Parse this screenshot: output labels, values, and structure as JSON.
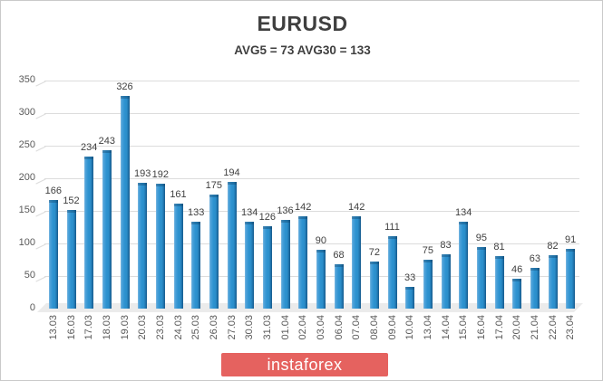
{
  "header": {
    "title": "EURUSD",
    "subtitle": "AVG5 = 73 AVG30 = 133"
  },
  "watermark": {
    "label": "instaforex",
    "background": "#e5625f",
    "text_color": "#ffffff"
  },
  "chart_data": {
    "type": "bar",
    "title": "EURUSD",
    "subtitle": "AVG5 = 73 AVG30 = 133",
    "categories": [
      "13.03",
      "16.03",
      "17.03",
      "18.03",
      "19.03",
      "20.03",
      "23.03",
      "24.03",
      "25.03",
      "26.03",
      "27.03",
      "30.03",
      "31.03",
      "01.04",
      "02.04",
      "03.04",
      "06.04",
      "07.04",
      "08.04",
      "09.04",
      "10.04",
      "13.04",
      "14.04",
      "15.04",
      "16.04",
      "17.04",
      "20.04",
      "21.04",
      "22.04",
      "23.04"
    ],
    "values": [
      166,
      152,
      234,
      243,
      326,
      193,
      192,
      161,
      133,
      175,
      194,
      134,
      126,
      136,
      142,
      90,
      68,
      142,
      72,
      111,
      33,
      75,
      83,
      134,
      95,
      81,
      46,
      63,
      82,
      91
    ],
    "avg5": 73,
    "avg30": 133,
    "xlabel": "",
    "ylabel": "",
    "ylim": [
      0,
      350
    ],
    "yticks": [
      0,
      50,
      100,
      150,
      200,
      250,
      300,
      350
    ],
    "grid": true,
    "legend": "none",
    "style": "3d-column",
    "bar_color": "#2e93d1",
    "bar_color_light": "#7db9e2",
    "bar_color_dark": "#175a8a",
    "value_label_color": "#3f3f3f",
    "axis_label_color": "#595959",
    "gridline_color": "#dcdcdc"
  }
}
